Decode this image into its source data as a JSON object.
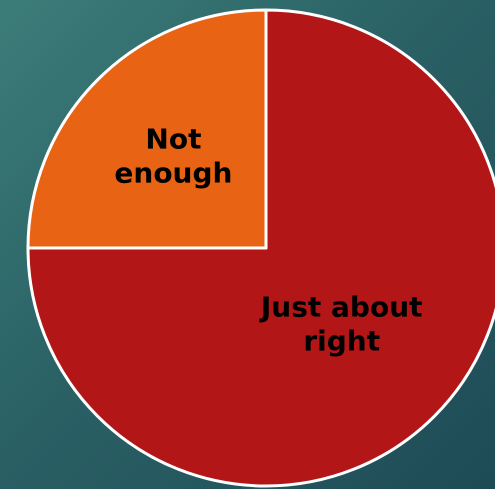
{
  "chart_data": {
    "type": "pie",
    "slices": [
      {
        "label": [
          "Just about",
          "right"
        ],
        "value": 75,
        "color": "#b31616"
      },
      {
        "label": [
          "Not",
          "enough"
        ],
        "value": 25,
        "color": "#e86414"
      }
    ],
    "start_angle_deg": 0,
    "direction": "clockwise",
    "legend": "none"
  }
}
